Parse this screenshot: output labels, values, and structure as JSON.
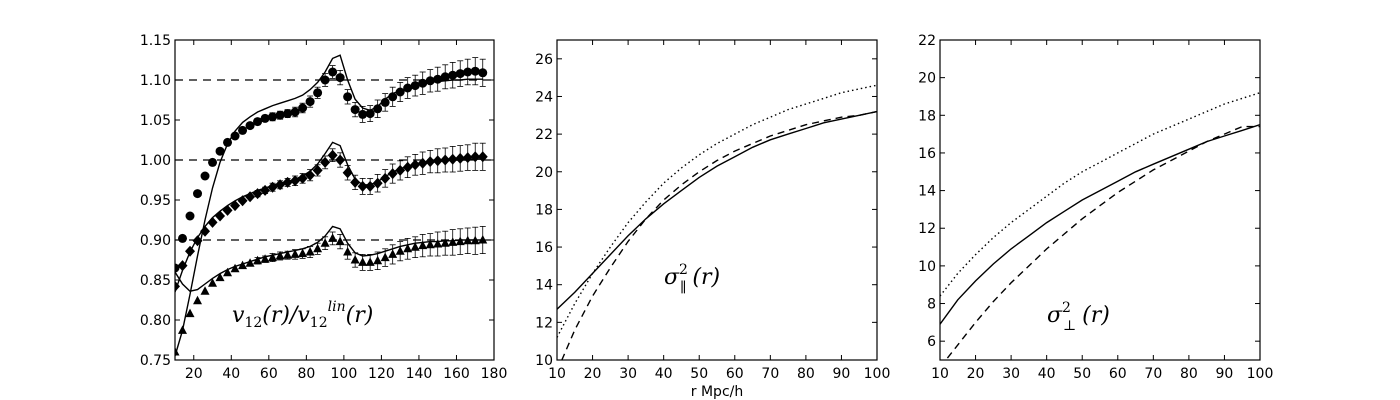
{
  "chart_data": [
    {
      "type": "scatter",
      "panel": "left",
      "xlim": [
        10,
        180
      ],
      "ylim": [
        0.75,
        1.15
      ],
      "x_ticks": [
        "20",
        "40",
        "60",
        "80",
        "100",
        "120",
        "140",
        "160",
        "180"
      ],
      "y_ticks": [
        "0.75",
        "0.80",
        "0.85",
        "0.90",
        "0.95",
        "1.00",
        "1.05",
        "1.10",
        "1.15"
      ],
      "xlabel": "",
      "ylabel": "",
      "annotation": "v12(r)/v12lin(r)",
      "reference_lines": [
        0.9,
        1.0,
        1.1
      ],
      "x": [
        10,
        14,
        18,
        22,
        26,
        30,
        34,
        38,
        42,
        46,
        50,
        54,
        58,
        62,
        66,
        70,
        74,
        78,
        82,
        86,
        90,
        94,
        98,
        102,
        106,
        110,
        114,
        118,
        122,
        126,
        130,
        134,
        138,
        142,
        146,
        150,
        154,
        158,
        162,
        166,
        170,
        174
      ],
      "series": [
        {
          "marker": "circle",
          "y": [
            0.865,
            0.902,
            0.93,
            0.958,
            0.98,
            0.997,
            1.011,
            1.022,
            1.03,
            1.037,
            1.043,
            1.048,
            1.052,
            1.054,
            1.056,
            1.058,
            1.06,
            1.065,
            1.073,
            1.084,
            1.1,
            1.11,
            1.103,
            1.079,
            1.063,
            1.057,
            1.058,
            1.064,
            1.072,
            1.079,
            1.085,
            1.09,
            1.093,
            1.096,
            1.099,
            1.101,
            1.104,
            1.106,
            1.108,
            1.11,
            1.111,
            1.109
          ],
          "error": [
            0.001,
            0.001,
            0.001,
            0.001,
            0.001,
            0.002,
            0.002,
            0.002,
            0.003,
            0.003,
            0.003,
            0.004,
            0.004,
            0.005,
            0.005,
            0.005,
            0.006,
            0.006,
            0.007,
            0.007,
            0.008,
            0.008,
            0.009,
            0.009,
            0.009,
            0.01,
            0.01,
            0.011,
            0.011,
            0.012,
            0.012,
            0.013,
            0.013,
            0.014,
            0.014,
            0.015,
            0.015,
            0.016,
            0.016,
            0.016,
            0.017,
            0.017
          ],
          "model": [
            0.755,
            0.787,
            0.832,
            0.88,
            0.925,
            0.965,
            0.997,
            1.02,
            1.036,
            1.047,
            1.054,
            1.06,
            1.064,
            1.068,
            1.071,
            1.074,
            1.077,
            1.081,
            1.088,
            1.097,
            1.11,
            1.127,
            1.131,
            1.1,
            1.076,
            1.065,
            1.062,
            1.067,
            1.076,
            1.083,
            1.087,
            1.09,
            1.093,
            1.095,
            1.097,
            1.098,
            1.099,
            1.1,
            1.1,
            1.101,
            1.101,
            1.101
          ]
        },
        {
          "marker": "diamond",
          "y": [
            0.842,
            0.868,
            0.886,
            0.899,
            0.911,
            0.922,
            0.93,
            0.937,
            0.943,
            0.949,
            0.954,
            0.958,
            0.962,
            0.966,
            0.969,
            0.972,
            0.974,
            0.977,
            0.981,
            0.987,
            0.997,
            1.006,
            1.0,
            0.984,
            0.972,
            0.967,
            0.967,
            0.971,
            0.977,
            0.983,
            0.987,
            0.991,
            0.994,
            0.996,
            0.998,
            0.999,
            1.0,
            1.001,
            1.002,
            1.003,
            1.004,
            1.004
          ],
          "error": [
            0.001,
            0.001,
            0.001,
            0.001,
            0.001,
            0.002,
            0.002,
            0.002,
            0.003,
            0.003,
            0.003,
            0.004,
            0.004,
            0.005,
            0.005,
            0.005,
            0.006,
            0.006,
            0.007,
            0.007,
            0.008,
            0.008,
            0.009,
            0.009,
            0.009,
            0.01,
            0.01,
            0.011,
            0.011,
            0.012,
            0.012,
            0.013,
            0.013,
            0.014,
            0.014,
            0.015,
            0.015,
            0.016,
            0.016,
            0.016,
            0.017,
            0.017
          ],
          "model": [
            0.835,
            0.862,
            0.885,
            0.903,
            0.917,
            0.928,
            0.936,
            0.943,
            0.949,
            0.954,
            0.958,
            0.962,
            0.965,
            0.968,
            0.971,
            0.973,
            0.976,
            0.98,
            0.986,
            0.995,
            1.008,
            1.022,
            1.018,
            0.994,
            0.976,
            0.969,
            0.969,
            0.973,
            0.979,
            0.985,
            0.989,
            0.992,
            0.994,
            0.996,
            0.997,
            0.998,
            0.999,
            1.0,
            1.0,
            1.0,
            1.001,
            1.001
          ]
        },
        {
          "marker": "triangle",
          "y": [
            0.76,
            0.787,
            0.808,
            0.824,
            0.836,
            0.846,
            0.853,
            0.859,
            0.864,
            0.868,
            0.871,
            0.874,
            0.876,
            0.878,
            0.88,
            0.881,
            0.882,
            0.883,
            0.885,
            0.889,
            0.896,
            0.902,
            0.898,
            0.885,
            0.875,
            0.872,
            0.872,
            0.874,
            0.878,
            0.882,
            0.886,
            0.889,
            0.891,
            0.893,
            0.894,
            0.895,
            0.896,
            0.897,
            0.898,
            0.899,
            0.899,
            0.9
          ],
          "error": [
            0.001,
            0.001,
            0.001,
            0.001,
            0.001,
            0.002,
            0.002,
            0.002,
            0.003,
            0.003,
            0.003,
            0.004,
            0.004,
            0.005,
            0.005,
            0.005,
            0.006,
            0.006,
            0.007,
            0.007,
            0.008,
            0.008,
            0.009,
            0.009,
            0.009,
            0.01,
            0.01,
            0.011,
            0.011,
            0.012,
            0.012,
            0.013,
            0.013,
            0.014,
            0.014,
            0.015,
            0.015,
            0.016,
            0.016,
            0.016,
            0.017,
            0.017
          ],
          "model": [
            0.86,
            0.845,
            0.836,
            0.838,
            0.845,
            0.852,
            0.858,
            0.863,
            0.867,
            0.87,
            0.873,
            0.876,
            0.879,
            0.881,
            0.883,
            0.885,
            0.887,
            0.889,
            0.892,
            0.897,
            0.905,
            0.917,
            0.914,
            0.896,
            0.884,
            0.88,
            0.881,
            0.883,
            0.886,
            0.889,
            0.892,
            0.894,
            0.896,
            0.897,
            0.898,
            0.898,
            0.899,
            0.899,
            0.9,
            0.9,
            0.9,
            0.9
          ]
        }
      ]
    },
    {
      "type": "line",
      "panel": "middle",
      "xlim": [
        10,
        100
      ],
      "ylim": [
        10,
        27
      ],
      "x_ticks": [
        "10",
        "20",
        "30",
        "40",
        "50",
        "60",
        "70",
        "80",
        "90",
        "100"
      ],
      "y_ticks": [
        "10",
        "12",
        "14",
        "16",
        "18",
        "20",
        "22",
        "24",
        "26"
      ],
      "xlabel": "r Mpc/h",
      "ylabel": "",
      "annotation": "σ²∥(r)",
      "x": [
        10,
        15,
        20,
        25,
        30,
        35,
        40,
        45,
        50,
        55,
        60,
        65,
        70,
        75,
        80,
        85,
        90,
        95,
        100
      ],
      "series": [
        {
          "style": "solid",
          "values": [
            12.7,
            13.6,
            14.6,
            15.6,
            16.6,
            17.5,
            18.3,
            19.0,
            19.7,
            20.3,
            20.8,
            21.3,
            21.7,
            22.0,
            22.3,
            22.6,
            22.8,
            23.0,
            23.2
          ]
        },
        {
          "style": "dashed",
          "values": [
            9.4,
            11.6,
            13.4,
            14.9,
            16.3,
            17.5,
            18.5,
            19.3,
            20.0,
            20.6,
            21.1,
            21.5,
            21.9,
            22.2,
            22.5,
            22.7,
            22.9,
            23.0,
            23.2
          ]
        },
        {
          "style": "dotted",
          "values": [
            11.2,
            13.0,
            14.6,
            16.0,
            17.3,
            18.4,
            19.4,
            20.2,
            20.9,
            21.5,
            22.0,
            22.5,
            22.9,
            23.3,
            23.6,
            23.9,
            24.2,
            24.4,
            24.6
          ]
        }
      ]
    },
    {
      "type": "line",
      "panel": "right",
      "xlim": [
        10,
        100
      ],
      "ylim": [
        5,
        22
      ],
      "x_ticks": [
        "10",
        "20",
        "30",
        "40",
        "50",
        "60",
        "70",
        "80",
        "90",
        "100"
      ],
      "y_ticks": [
        "6",
        "8",
        "10",
        "12",
        "14",
        "16",
        "18",
        "20",
        "22"
      ],
      "xlabel": "",
      "ylabel": "",
      "annotation": "σ²⊥(r)",
      "x": [
        10,
        15,
        20,
        25,
        30,
        35,
        40,
        45,
        50,
        55,
        60,
        65,
        70,
        75,
        80,
        85,
        90,
        95,
        100
      ],
      "series": [
        {
          "style": "solid",
          "values": [
            6.9,
            8.2,
            9.2,
            10.1,
            10.9,
            11.6,
            12.3,
            12.9,
            13.5,
            14.0,
            14.5,
            15.0,
            15.4,
            15.8,
            16.2,
            16.6,
            16.9,
            17.2,
            17.5
          ]
        },
        {
          "style": "dashed",
          "values": [
            4.6,
            5.8,
            7.0,
            8.1,
            9.1,
            10.0,
            10.9,
            11.7,
            12.5,
            13.2,
            13.9,
            14.5,
            15.1,
            15.6,
            16.1,
            16.6,
            17.0,
            17.4,
            17.4
          ]
        },
        {
          "style": "dotted",
          "values": [
            8.4,
            9.6,
            10.6,
            11.5,
            12.3,
            13.0,
            13.7,
            14.4,
            15.0,
            15.5,
            16.0,
            16.5,
            17.0,
            17.4,
            17.8,
            18.2,
            18.6,
            18.9,
            19.2
          ]
        }
      ]
    }
  ]
}
